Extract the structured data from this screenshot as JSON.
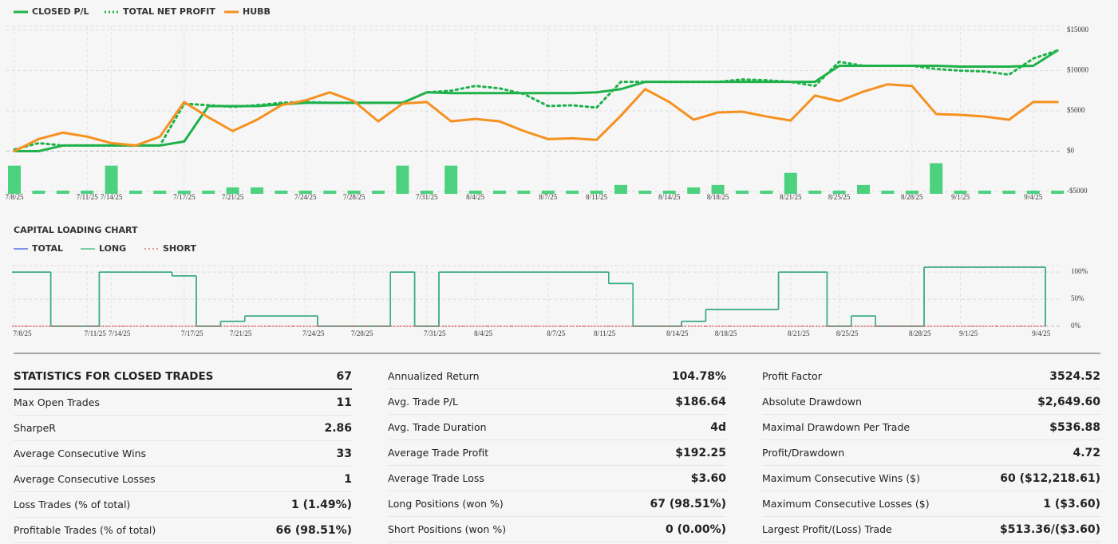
{
  "chart_data": [
    {
      "type": "line",
      "categories": [
        "7/8/25",
        null,
        null,
        "7/11/25",
        "7/14/25",
        null,
        null,
        "7/17/25",
        null,
        "7/21/25",
        null,
        null,
        "7/24/25",
        null,
        "7/28/25",
        null,
        null,
        "7/31/25",
        null,
        "8/4/25",
        null,
        null,
        "8/7/25",
        null,
        "8/11/25",
        null,
        null,
        "8/14/25",
        null,
        "8/18/25",
        null,
        null,
        "8/21/25",
        null,
        "8/25/25",
        null,
        null,
        "8/28/25",
        null,
        "9/1/25",
        null,
        null,
        "9/4/25",
        null
      ],
      "series": [
        {
          "name": "CLOSED P/L",
          "color": "#1fb14a",
          "dash": "solid",
          "values": [
            0,
            0,
            700,
            700,
            700,
            700,
            700,
            1200,
            5600,
            5600,
            5600,
            5800,
            6000,
            6000,
            6000,
            6000,
            6000,
            7300,
            7200,
            7200,
            7200,
            7200,
            7200,
            7200,
            7300,
            7700,
            8600,
            8600,
            8600,
            8600,
            8600,
            8600,
            8600,
            8600,
            10600,
            10600,
            10600,
            10600,
            10600,
            10500,
            10500,
            10500,
            10600,
            12500
          ]
        },
        {
          "name": "TOTAL NET PROFIT",
          "color": "#1fb14a",
          "dash": "dotted",
          "values": [
            200,
            1000,
            700,
            700,
            700,
            700,
            700,
            5900,
            5700,
            5500,
            5700,
            6000,
            6100,
            6000,
            6000,
            6000,
            6000,
            7300,
            7500,
            8100,
            7800,
            7100,
            5600,
            5700,
            5400,
            8600,
            8600,
            8600,
            8600,
            8600,
            8900,
            8800,
            8600,
            8100,
            11100,
            10600,
            10600,
            10600,
            10200,
            10000,
            9900,
            9500,
            11500,
            12500
          ]
        },
        {
          "name": "HUBB",
          "color": "#f59120",
          "dash": "solid",
          "values": [
            0,
            1500,
            2300,
            1800,
            1000,
            700,
            1800,
            6100,
            4200,
            2500,
            3900,
            5700,
            6300,
            7300,
            6200,
            3700,
            5900,
            6100,
            3700,
            4000,
            3700,
            2500,
            1500,
            1600,
            1400,
            4400,
            7700,
            6100,
            3900,
            4800,
            4900,
            4300,
            3800,
            6900,
            6200,
            7400,
            8300,
            8100,
            4600,
            4500,
            4300,
            3900,
            6100,
            6100
          ]
        }
      ],
      "bar_color": "#4cd17f",
      "bar_values": [
        -1800,
        -4900,
        -4900,
        -4900,
        -1800,
        -4900,
        -4900,
        -4900,
        -4900,
        -4500,
        -4500,
        -4900,
        -4900,
        -4900,
        -4900,
        -4900,
        -1800,
        -4900,
        -1800,
        -4900,
        -4900,
        -4900,
        -4900,
        -4900,
        -4900,
        -4200,
        -4900,
        -4900,
        -4500,
        -4200,
        -4900,
        -4900,
        -2700,
        -4900,
        -4900,
        -4200,
        -4900,
        -4900,
        -1500,
        -4900,
        -4900,
        -4900,
        -4900,
        -4900
      ],
      "ylim": [
        -5300,
        15500
      ],
      "yticks": [
        {
          "value": 15000,
          "label": "$15000"
        },
        {
          "value": 10000,
          "label": "$10000"
        },
        {
          "value": 5000,
          "label": "$5000"
        },
        {
          "value": 0,
          "label": "$0"
        },
        {
          "value": -5000,
          "label": "-$5000"
        }
      ],
      "grid": true
    },
    {
      "type": "step",
      "title": "CAPITAL LOADING CHART",
      "categories": [
        "7/8/25",
        null,
        null,
        "7/11/25",
        "7/14/25",
        null,
        null,
        "7/17/25",
        null,
        "7/21/25",
        null,
        null,
        "7/24/25",
        null,
        "7/28/25",
        null,
        null,
        "7/31/25",
        null,
        "8/4/25",
        null,
        null,
        "8/7/25",
        null,
        "8/11/25",
        null,
        null,
        "8/14/25",
        null,
        "8/18/25",
        null,
        null,
        "8/21/25",
        null,
        "8/25/25",
        null,
        null,
        "8/28/25",
        null,
        "9/1/25",
        null,
        null,
        "9/4/25",
        null
      ],
      "series": [
        {
          "name": "TOTAL",
          "color": "#3b5bdb",
          "dash": "solid",
          "values": [
            100,
            100,
            0,
            0,
            100,
            100,
            100,
            93,
            0,
            9,
            19,
            19,
            19,
            0,
            0,
            0,
            100,
            0,
            100,
            100,
            100,
            100,
            100,
            100,
            100,
            79,
            0,
            0,
            9,
            31,
            31,
            31,
            100,
            100,
            0,
            19,
            0,
            0,
            109,
            109,
            109,
            109,
            109,
            null
          ]
        },
        {
          "name": "LONG",
          "color": "#35b27a",
          "dash": "solid",
          "values": [
            100,
            100,
            0,
            0,
            100,
            100,
            100,
            93,
            0,
            9,
            19,
            19,
            19,
            0,
            0,
            0,
            100,
            0,
            100,
            100,
            100,
            100,
            100,
            100,
            100,
            79,
            0,
            0,
            9,
            31,
            31,
            31,
            100,
            100,
            0,
            19,
            0,
            0,
            109,
            109,
            109,
            109,
            109,
            null
          ]
        },
        {
          "name": "SHORT",
          "color": "#e06464",
          "dash": "dotted",
          "values": [
            0,
            0,
            0,
            0,
            0,
            0,
            0,
            0,
            0,
            0,
            0,
            0,
            0,
            0,
            0,
            0,
            0,
            0,
            0,
            0,
            0,
            0,
            0,
            0,
            0,
            0,
            0,
            0,
            0,
            0,
            0,
            0,
            0,
            0,
            0,
            0,
            0,
            0,
            0,
            0,
            0,
            0,
            0,
            null
          ]
        }
      ],
      "ylim": [
        0,
        112
      ],
      "yticks": [
        {
          "value": 100,
          "label": "100%"
        },
        {
          "value": 50,
          "label": "50%"
        },
        {
          "value": 0,
          "label": "0%"
        }
      ],
      "grid": true
    }
  ],
  "statistics": {
    "columns": [
      {
        "rows": [
          {
            "label": "STATISTICS FOR CLOSED TRADES",
            "value": "67"
          },
          {
            "label": "Max Open Trades",
            "value": "11"
          },
          {
            "label": "SharpeR",
            "value": "2.86"
          },
          {
            "label": "Average Consecutive Wins",
            "value": "33"
          },
          {
            "label": "Average Consecutive Losses",
            "value": "1"
          },
          {
            "label": "Loss Trades (% of total)",
            "value": "1 (1.49%)"
          },
          {
            "label": "Profitable Trades (% of total)",
            "value": "66 (98.51%)"
          }
        ]
      },
      {
        "rows": [
          {
            "label": "Annualized Return",
            "value": "104.78%"
          },
          {
            "label": "Avg. Trade P/L",
            "value": "$186.64"
          },
          {
            "label": "Avg. Trade Duration",
            "value": "4d"
          },
          {
            "label": "Average Trade Profit",
            "value": "$192.25"
          },
          {
            "label": "Average Trade Loss",
            "value": "$3.60"
          },
          {
            "label": "Long Positions (won %)",
            "value": "67 (98.51%)"
          },
          {
            "label": "Short Positions (won %)",
            "value": "0 (0.00%)"
          }
        ]
      },
      {
        "rows": [
          {
            "label": "Profit Factor",
            "value": "3524.52"
          },
          {
            "label": "Absolute Drawdown",
            "value": "$2,649.60"
          },
          {
            "label": "Maximal Drawdown Per Trade",
            "value": "$536.88"
          },
          {
            "label": "Profit/Drawdown",
            "value": "4.72"
          },
          {
            "label": "Maximum Consecutive Wins ($)",
            "value": "60 ($12,218.61)"
          },
          {
            "label": "Maximum Consecutive Losses ($)",
            "value": "1 ($3.60)"
          },
          {
            "label": "Largest Profit/(Loss) Trade",
            "value": "$513.36/($3.60)"
          }
        ]
      }
    ]
  }
}
